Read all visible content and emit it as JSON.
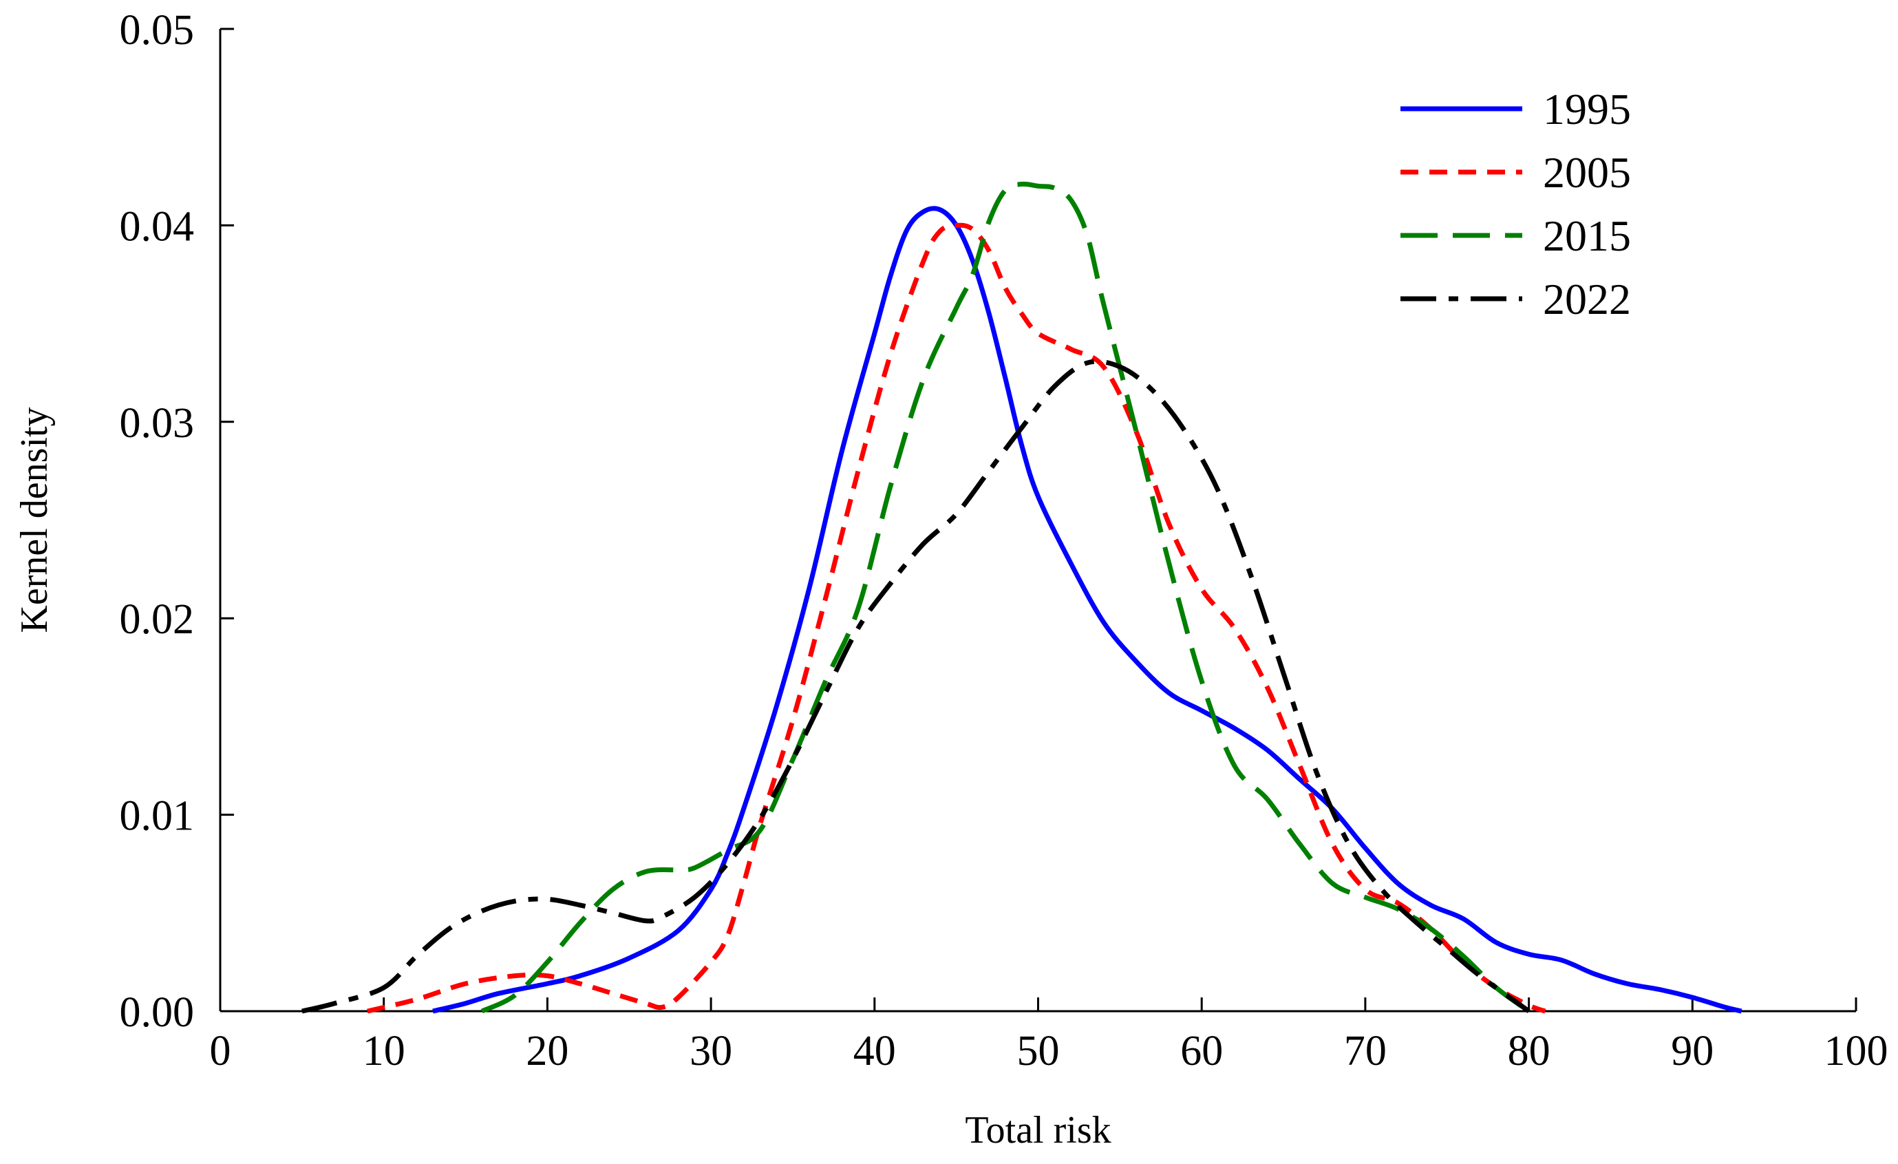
{
  "chart_data": {
    "type": "line",
    "title": "",
    "xlabel": "Total risk",
    "ylabel": "Kernel density",
    "xlim": [
      0,
      100
    ],
    "ylim": [
      0,
      0.05
    ],
    "x_ticks": [
      "0",
      "10",
      "20",
      "30",
      "40",
      "50",
      "60",
      "70",
      "80",
      "90",
      "100"
    ],
    "y_ticks": [
      "0.00",
      "0.01",
      "0.02",
      "0.03",
      "0.04",
      "0.05"
    ],
    "grid": false,
    "legend_position": "top-right",
    "series": [
      {
        "name": "1995",
        "color": "#0000ff",
        "dash": "solid",
        "points": [
          [
            13,
            0
          ],
          [
            15,
            0.0004
          ],
          [
            17,
            0.0009
          ],
          [
            20,
            0.0014
          ],
          [
            22,
            0.0018
          ],
          [
            25,
            0.0027
          ],
          [
            28,
            0.0041
          ],
          [
            30,
            0.0062
          ],
          [
            31,
            0.008
          ],
          [
            32,
            0.0103
          ],
          [
            34,
            0.0155
          ],
          [
            36,
            0.0215
          ],
          [
            38,
            0.0285
          ],
          [
            40,
            0.0345
          ],
          [
            41,
            0.0375
          ],
          [
            42,
            0.0398
          ],
          [
            43,
            0.0407
          ],
          [
            44,
            0.0408
          ],
          [
            45,
            0.04
          ],
          [
            46,
            0.0382
          ],
          [
            47,
            0.0355
          ],
          [
            48,
            0.0322
          ],
          [
            49,
            0.0288
          ],
          [
            50,
            0.0262
          ],
          [
            52,
            0.0228
          ],
          [
            54,
            0.0198
          ],
          [
            56,
            0.0178
          ],
          [
            58,
            0.0162
          ],
          [
            60,
            0.0153
          ],
          [
            62,
            0.0144
          ],
          [
            64,
            0.0133
          ],
          [
            66,
            0.0118
          ],
          [
            68,
            0.0103
          ],
          [
            70,
            0.0083
          ],
          [
            72,
            0.0065
          ],
          [
            74,
            0.0054
          ],
          [
            76,
            0.0047
          ],
          [
            78,
            0.0035
          ],
          [
            80,
            0.0029
          ],
          [
            82,
            0.0026
          ],
          [
            84,
            0.0019
          ],
          [
            86,
            0.0014
          ],
          [
            88,
            0.0011
          ],
          [
            90,
            0.0007
          ],
          [
            92,
            0.0002
          ],
          [
            93,
            0
          ]
        ]
      },
      {
        "name": "2005",
        "color": "#ff0000",
        "dash": "short",
        "points": [
          [
            9,
            0
          ],
          [
            12,
            0.0006
          ],
          [
            15,
            0.0014
          ],
          [
            18,
            0.0018
          ],
          [
            20,
            0.0018
          ],
          [
            22,
            0.0014
          ],
          [
            24,
            0.0009
          ],
          [
            26,
            0.0004
          ],
          [
            27,
            0.0002
          ],
          [
            28,
            0.0007
          ],
          [
            30,
            0.0025
          ],
          [
            31,
            0.0038
          ],
          [
            32,
            0.0065
          ],
          [
            33,
            0.0095
          ],
          [
            35,
            0.0148
          ],
          [
            37,
            0.021
          ],
          [
            39,
            0.0275
          ],
          [
            41,
            0.0335
          ],
          [
            43,
            0.0382
          ],
          [
            44,
            0.0397
          ],
          [
            45,
            0.04
          ],
          [
            46,
            0.0398
          ],
          [
            47,
            0.0387
          ],
          [
            48,
            0.0368
          ],
          [
            49,
            0.0355
          ],
          [
            50,
            0.0345
          ],
          [
            52,
            0.0337
          ],
          [
            54,
            0.0328
          ],
          [
            56,
            0.0295
          ],
          [
            58,
            0.0248
          ],
          [
            60,
            0.0215
          ],
          [
            62,
            0.0195
          ],
          [
            64,
            0.0165
          ],
          [
            66,
            0.0125
          ],
          [
            68,
            0.0085
          ],
          [
            70,
            0.0062
          ],
          [
            72,
            0.0055
          ],
          [
            74,
            0.0042
          ],
          [
            76,
            0.0025
          ],
          [
            78,
            0.0012
          ],
          [
            80,
            0.0003
          ],
          [
            81,
            0
          ]
        ]
      },
      {
        "name": "2015",
        "color": "#008000",
        "dash": "long",
        "points": [
          [
            16,
            0
          ],
          [
            18,
            0.0008
          ],
          [
            20,
            0.0025
          ],
          [
            22,
            0.0045
          ],
          [
            24,
            0.0062
          ],
          [
            26,
            0.0071
          ],
          [
            28,
            0.0072
          ],
          [
            29,
            0.0073
          ],
          [
            31,
            0.0082
          ],
          [
            33,
            0.0092
          ],
          [
            35,
            0.0128
          ],
          [
            37,
            0.0168
          ],
          [
            39,
            0.0205
          ],
          [
            41,
            0.0268
          ],
          [
            43,
            0.0322
          ],
          [
            45,
            0.0358
          ],
          [
            46,
            0.0375
          ],
          [
            47,
            0.0402
          ],
          [
            48,
            0.0418
          ],
          [
            49,
            0.0421
          ],
          [
            50,
            0.042
          ],
          [
            51,
            0.0419
          ],
          [
            52,
            0.0413
          ],
          [
            53,
            0.0395
          ],
          [
            54,
            0.036
          ],
          [
            56,
            0.0295
          ],
          [
            58,
            0.0228
          ],
          [
            60,
            0.0168
          ],
          [
            62,
            0.0125
          ],
          [
            64,
            0.0108
          ],
          [
            66,
            0.0085
          ],
          [
            68,
            0.0065
          ],
          [
            70,
            0.0058
          ],
          [
            72,
            0.0052
          ],
          [
            74,
            0.0042
          ],
          [
            76,
            0.0028
          ],
          [
            78,
            0.0012
          ],
          [
            80,
            0
          ]
        ]
      },
      {
        "name": "2022",
        "color": "#000000",
        "dash": "dashdot",
        "points": [
          [
            5,
            0
          ],
          [
            7,
            0.0004
          ],
          [
            10,
            0.0012
          ],
          [
            12,
            0.0028
          ],
          [
            14,
            0.0042
          ],
          [
            16,
            0.0051
          ],
          [
            18,
            0.0056
          ],
          [
            20,
            0.0057
          ],
          [
            22,
            0.0054
          ],
          [
            24,
            0.005
          ],
          [
            26,
            0.0046
          ],
          [
            27,
            0.0048
          ],
          [
            29,
            0.0058
          ],
          [
            31,
            0.0075
          ],
          [
            33,
            0.0098
          ],
          [
            35,
            0.0128
          ],
          [
            37,
            0.0162
          ],
          [
            39,
            0.0195
          ],
          [
            41,
            0.0218
          ],
          [
            43,
            0.0238
          ],
          [
            45,
            0.0253
          ],
          [
            47,
            0.0275
          ],
          [
            49,
            0.0297
          ],
          [
            51,
            0.0318
          ],
          [
            53,
            0.033
          ],
          [
            55,
            0.0328
          ],
          [
            57,
            0.0316
          ],
          [
            59,
            0.0295
          ],
          [
            61,
            0.0265
          ],
          [
            63,
            0.0222
          ],
          [
            65,
            0.0172
          ],
          [
            67,
            0.0122
          ],
          [
            69,
            0.0085
          ],
          [
            71,
            0.0062
          ],
          [
            73,
            0.0046
          ],
          [
            75,
            0.0032
          ],
          [
            77,
            0.0018
          ],
          [
            79,
            0.0006
          ],
          [
            80,
            0
          ]
        ]
      }
    ]
  }
}
